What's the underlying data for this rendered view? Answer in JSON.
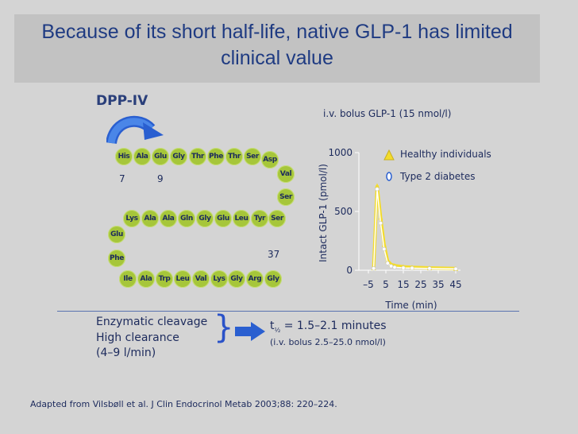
{
  "title": "Because of its short half-life, native GLP-1 has limited clinical value",
  "enzyme_label": "DPP-IV",
  "peptide": {
    "row1": [
      "His",
      "Ala",
      "Glu",
      "Gly",
      "Thr",
      "Phe",
      "Thr",
      "Ser",
      "Asp"
    ],
    "right1": [
      "Val",
      "Ser"
    ],
    "row2": [
      "Lys",
      "Ala",
      "Ala",
      "Gln",
      "Gly",
      "Glu",
      "Leu",
      "Tyr",
      "Ser"
    ],
    "left2": [
      "Glu",
      "Phe"
    ],
    "row3": [
      "Ile",
      "Ala",
      "Trp",
      "Leu",
      "Val",
      "Lys",
      "Gly",
      "Arg",
      "Gly"
    ],
    "position_labels": [
      "7",
      "9",
      "37"
    ]
  },
  "chart_data": {
    "type": "line",
    "subtitle": "i.v. bolus GLP-1 (15 nmol/l)",
    "xlabel": "Time (min)",
    "ylabel": "Intact GLP-1 (pmol/l)",
    "xticks": [
      "–5",
      "5",
      "15",
      "25",
      "35",
      "45"
    ],
    "yticks": [
      "0",
      "500",
      "1000"
    ],
    "xlim": [
      -5,
      45
    ],
    "ylim": [
      0,
      1000
    ],
    "series": [
      {
        "name": "Healthy individuals",
        "color": "#f3dc2c",
        "marker": "triangle",
        "x": [
          -2,
          0,
          2,
          4,
          6,
          8,
          10,
          15,
          20,
          30,
          45
        ],
        "y": [
          20,
          720,
          450,
          220,
          80,
          50,
          40,
          30,
          25,
          20,
          15
        ]
      },
      {
        "name": "Type 2 diabetes",
        "color": "#ffffff",
        "marker": "circle",
        "x": [
          -2,
          0,
          2,
          4,
          6,
          8,
          10,
          15,
          20,
          30,
          45
        ],
        "y": [
          15,
          690,
          400,
          180,
          60,
          35,
          25,
          20,
          18,
          15,
          12
        ]
      }
    ]
  },
  "notes": {
    "cleavage": "Enzymatic cleavage",
    "clearance_1": "High clearance",
    "clearance_2": "(4–9 l/min)",
    "brace": "}",
    "halflife_prefix": "t",
    "halflife_sub": "½",
    "halflife_value": " = 1.5–2.1 minutes",
    "halflife_dose": "(i.v. bolus 2.5–25.0 nmol/l)"
  },
  "citation": "Adapted from Vilsbøll et al. J Clin Endocrinol Metab 2003;88: 220–224."
}
